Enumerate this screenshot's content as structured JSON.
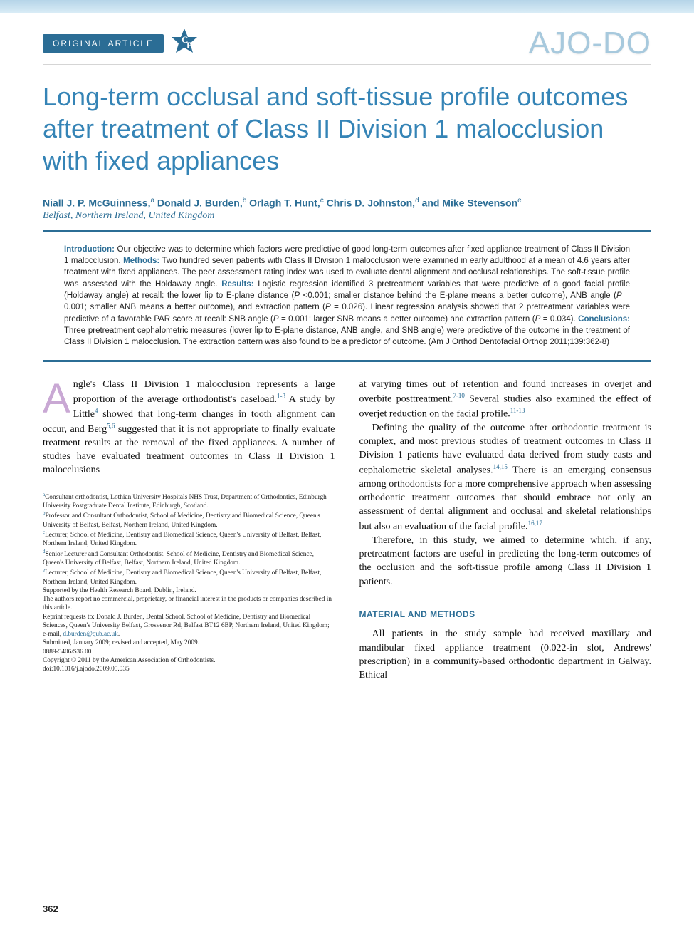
{
  "colors": {
    "brand_blue": "#2b6d95",
    "title_blue": "#3584b6",
    "logo_blue": "#a7c9dd",
    "dropcap_lilac": "#c9a8d4",
    "banner_top": "#b5d4e8",
    "banner_bot": "#d9ecf6",
    "divider_gray": "#d5d5d5",
    "text": "#222"
  },
  "header": {
    "article_type": "ORIGINAL ARTICLE",
    "ce_badge_letters": "CE",
    "journal_logo": "AJO-DO"
  },
  "title": "Long-term occlusal and soft-tissue profile outcomes after treatment of Class II Division 1 malocclusion with fixed appliances",
  "authors_html": "Niall J. P. McGuinness,<sup>a</sup> Donald J. Burden,<sup>b</sup> Orlagh T. Hunt,<sup>c</sup> Chris D. Johnston,<sup>d</sup> and Mike Stevenson<sup>e</sup>",
  "affil_location": "Belfast, Northern Ireland, United Kingdom",
  "abstract": {
    "intro_label": "Introduction:",
    "intro": " Our objective was to determine which factors were predictive of good long-term outcomes after fixed appliance treatment of Class II Division 1 malocclusion. ",
    "methods_label": "Methods:",
    "methods": " Two hundred seven patients with Class II Division 1 malocclusion were examined in early adulthood at a mean of 4.6 years after treatment with fixed appliances. The peer assessment rating index was used to evaluate dental alignment and occlusal relationships. The soft-tissue profile was assessed with the Holdaway angle. ",
    "results_label": "Results:",
    "results": " Logistic regression identified 3 pretreatment variables that were predictive of a good facial profile (Holdaway angle) at recall: the lower lip to E-plane distance (P <0.001; smaller distance behind the E-plane means a better outcome), ANB angle (P = 0.001; smaller ANB means a better outcome), and extraction pattern (P = 0.026). Linear regression analysis showed that 2 pretreatment variables were predictive of a favorable PAR score at recall: SNB angle (P = 0.001; larger SNB means a better outcome) and extraction pattern (P = 0.034). ",
    "concl_label": "Conclusions:",
    "concl": " Three pretreatment cephalometric measures (lower lip to E-plane distance, ANB angle, and SNB angle) were predictive of the outcome in the treatment of Class II Division 1 malocclusion. The extraction pattern was also found to be a predictor of outcome. (Am J Orthod Dentofacial Orthop 2011;139:362-8)"
  },
  "body": {
    "col1_p1_html": "ngle's Class II Division 1 malocclusion represents a large proportion of the average orthodontist's caseload.<sup>1-3</sup> A study by Little<sup>4</sup> showed that long-term changes in tooth alignment can occur, and Berg<sup>5,6</sup> suggested that it is not appropriate to finally evaluate treatment results at the removal of the fixed appliances. A number of studies have evaluated treatment outcomes in Class II Division 1 malocclusions",
    "col2_p1_html": "at varying times out of retention and found increases in overjet and overbite posttreatment.<sup>7-10</sup> Several studies also examined the effect of overjet reduction on the facial profile.<sup>11-13</sup>",
    "col2_p2_html": "Defining the quality of the outcome after orthodontic treatment is complex, and most previous studies of treatment outcomes in Class II Division 1 patients have evaluated data derived from study casts and cephalometric skeletal analyses.<sup>14,15</sup> There is an emerging consensus among orthodontists for a more comprehensive approach when assessing orthodontic treatment outcomes that should embrace not only an assessment of dental alignment and occlusal and skeletal relationships but also an evaluation of the facial profile.<sup>16,17</sup>",
    "col2_p3_html": "Therefore, in this study, we aimed to determine which, if any, pretreatment factors are useful in predicting the long-term outcomes of the occlusion and the soft-tissue profile among Class II Division 1 patients.",
    "methods_head": "MATERIAL AND METHODS",
    "col2_p4_html": "All patients in the study sample had received maxillary and mandibular fixed appliance treatment (0.022-in slot, Andrews' prescription) in a community-based orthodontic department in Galway. Ethical"
  },
  "footnotes": {
    "a": "Consultant orthodontist, Lothian University Hospitals NHS Trust, Department of Orthodontics, Edinburgh University Postgraduate Dental Institute, Edinburgh, Scotland.",
    "b": "Professor and Consultant Orthodontist, School of Medicine, Dentistry and Biomedical Science, Queen's University of Belfast, Belfast, Northern Ireland, United Kingdom.",
    "c": "Lecturer, School of Medicine, Dentistry and Biomedical Science, Queen's University of Belfast, Belfast, Northern Ireland, United Kingdom.",
    "d": "Senior Lecturer and Consultant Orthodontist, School of Medicine, Dentistry and Biomedical Science, Queen's University of Belfast, Belfast, Northern Ireland, United Kingdom.",
    "e": "Lecturer, School of Medicine, Dentistry and Biomedical Science, Queen's University of Belfast, Belfast, Northern Ireland, United Kingdom.",
    "support": "Supported by the Health Research Board, Dublin, Ireland.",
    "coi": "The authors report no commercial, proprietary, or financial interest in the products or companies described in this article.",
    "reprint_pre": "Reprint requests to: Donald J. Burden, Dental School, School of Medicine, Dentistry and Biomedical Sciences, Queen's University Belfast, Grosvenor Rd, Belfast BT12 6BP, Northern Ireland, United Kingdom; e-mail, ",
    "reprint_email": "d.burden@qub.ac.uk",
    "reprint_post": ".",
    "submitted": "Submitted, January 2009; revised and accepted, May 2009.",
    "issn": "0889-5406/$36.00",
    "copyright": "Copyright © 2011 by the American Association of Orthodontists.",
    "doi": "doi:10.1016/j.ajodo.2009.05.035"
  },
  "page_number": "362"
}
